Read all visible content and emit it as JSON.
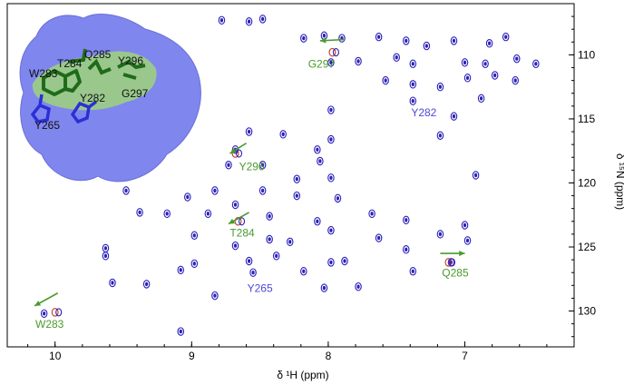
{
  "chart_data": {
    "type": "scatter",
    "title": "",
    "xlabel": "δ ¹H (ppm)",
    "ylabel": "δ ¹⁵N (ppm)",
    "xlim": [
      10.35,
      6.2
    ],
    "ylim": [
      106.0,
      132.8
    ],
    "x_ticks": [
      10,
      9,
      8,
      7
    ],
    "x_tick_labels": [
      "10",
      "9",
      "8",
      "7"
    ],
    "y_ticks": [
      110,
      115,
      120,
      125,
      130
    ],
    "y_tick_labels": [
      "110",
      "115",
      "120",
      "125",
      "130"
    ],
    "grid": false,
    "colors": {
      "peak": "#2a1fb8",
      "shifted_peak": "#c0392b",
      "perturbed_label": "#4a9b2c",
      "unperturbed_label": "#4b4ad6",
      "protein_surface": "#7f86ee",
      "binding_patch": "#9fd37a"
    },
    "peaks": [
      {
        "x": 8.78,
        "y": 107.3
      },
      {
        "x": 8.58,
        "y": 107.4
      },
      {
        "x": 8.48,
        "y": 107.2
      },
      {
        "x": 8.18,
        "y": 108.7
      },
      {
        "x": 8.03,
        "y": 108.5
      },
      {
        "x": 7.9,
        "y": 108.7
      },
      {
        "x": 7.63,
        "y": 108.6
      },
      {
        "x": 7.43,
        "y": 108.9
      },
      {
        "x": 7.28,
        "y": 109.3
      },
      {
        "x": 7.08,
        "y": 108.9
      },
      {
        "x": 6.82,
        "y": 109.1
      },
      {
        "x": 6.7,
        "y": 108.6
      },
      {
        "x": 7.98,
        "y": 110.6
      },
      {
        "x": 7.78,
        "y": 110.5
      },
      {
        "x": 7.5,
        "y": 110.2
      },
      {
        "x": 7.38,
        "y": 110.7
      },
      {
        "x": 7.0,
        "y": 110.6
      },
      {
        "x": 6.85,
        "y": 110.7
      },
      {
        "x": 6.62,
        "y": 110.3
      },
      {
        "x": 6.48,
        "y": 110.7
      },
      {
        "x": 7.58,
        "y": 112.0
      },
      {
        "x": 7.38,
        "y": 112.3
      },
      {
        "x": 7.18,
        "y": 112.5
      },
      {
        "x": 6.98,
        "y": 111.8
      },
      {
        "x": 6.78,
        "y": 111.6
      },
      {
        "x": 6.63,
        "y": 112.0
      },
      {
        "x": 7.38,
        "y": 113.6
      },
      {
        "x": 6.88,
        "y": 113.4
      },
      {
        "x": 7.98,
        "y": 114.3
      },
      {
        "x": 7.08,
        "y": 114.8
      },
      {
        "x": 7.18,
        "y": 116.3
      },
      {
        "x": 7.98,
        "y": 116.6
      },
      {
        "x": 8.58,
        "y": 116.0
      },
      {
        "x": 8.33,
        "y": 116.2
      },
      {
        "x": 8.08,
        "y": 117.4
      },
      {
        "x": 8.68,
        "y": 117.4
      },
      {
        "x": 8.73,
        "y": 118.6
      },
      {
        "x": 8.48,
        "y": 118.6
      },
      {
        "x": 8.06,
        "y": 118.3
      },
      {
        "x": 8.23,
        "y": 119.7
      },
      {
        "x": 6.92,
        "y": 119.4
      },
      {
        "x": 7.98,
        "y": 119.6
      },
      {
        "x": 9.48,
        "y": 120.6
      },
      {
        "x": 8.83,
        "y": 120.6
      },
      {
        "x": 8.48,
        "y": 120.6
      },
      {
        "x": 9.03,
        "y": 121.1
      },
      {
        "x": 8.23,
        "y": 121.0
      },
      {
        "x": 8.68,
        "y": 121.7
      },
      {
        "x": 7.93,
        "y": 121.2
      },
      {
        "x": 9.18,
        "y": 122.4
      },
      {
        "x": 8.88,
        "y": 122.4
      },
      {
        "x": 9.38,
        "y": 122.3
      },
      {
        "x": 8.43,
        "y": 122.6
      },
      {
        "x": 7.68,
        "y": 122.4
      },
      {
        "x": 8.08,
        "y": 123.0
      },
      {
        "x": 7.43,
        "y": 122.9
      },
      {
        "x": 7.0,
        "y": 123.3
      },
      {
        "x": 7.98,
        "y": 123.7
      },
      {
        "x": 8.43,
        "y": 124.4
      },
      {
        "x": 8.98,
        "y": 124.1
      },
      {
        "x": 8.28,
        "y": 124.6
      },
      {
        "x": 7.63,
        "y": 124.3
      },
      {
        "x": 7.18,
        "y": 124.0
      },
      {
        "x": 6.98,
        "y": 124.5
      },
      {
        "x": 9.63,
        "y": 125.1
      },
      {
        "x": 8.68,
        "y": 124.9
      },
      {
        "x": 9.63,
        "y": 125.7
      },
      {
        "x": 8.38,
        "y": 125.7
      },
      {
        "x": 7.43,
        "y": 125.2
      },
      {
        "x": 8.98,
        "y": 126.3
      },
      {
        "x": 8.58,
        "y": 126.1
      },
      {
        "x": 7.98,
        "y": 126.2
      },
      {
        "x": 7.88,
        "y": 126.1
      },
      {
        "x": 7.38,
        "y": 126.9
      },
      {
        "x": 9.08,
        "y": 126.8
      },
      {
        "x": 8.18,
        "y": 126.9
      },
      {
        "x": 7.1,
        "y": 126.2
      },
      {
        "x": 9.58,
        "y": 127.8
      },
      {
        "x": 9.33,
        "y": 127.9
      },
      {
        "x": 8.03,
        "y": 128.2
      },
      {
        "x": 7.78,
        "y": 128.1
      },
      {
        "x": 8.83,
        "y": 128.8
      },
      {
        "x": 10.08,
        "y": 130.2
      },
      {
        "x": 9.08,
        "y": 131.6
      },
      {
        "x": 8.55,
        "y": 127.0
      }
    ],
    "shifted_peaks": [
      {
        "x": 7.97,
        "y": 109.8
      },
      {
        "x": 8.68,
        "y": 117.7
      },
      {
        "x": 8.66,
        "y": 123.0
      },
      {
        "x": 7.12,
        "y": 126.2
      },
      {
        "x": 10.0,
        "y": 130.1
      }
    ],
    "shift_arrows": [
      {
        "x1": 7.88,
        "y1": 108.8,
        "x2": 8.06,
        "y2": 108.9,
        "label": "G297"
      },
      {
        "x1": 8.6,
        "y1": 116.9,
        "x2": 8.72,
        "y2": 117.7,
        "label": "Y296"
      },
      {
        "x1": 8.58,
        "y1": 122.3,
        "x2": 8.73,
        "y2": 123.2,
        "label": "T284"
      },
      {
        "x1": 7.18,
        "y1": 125.5,
        "x2": 7.0,
        "y2": 125.5,
        "label": "Q285"
      },
      {
        "x1": 9.98,
        "y1": 128.6,
        "x2": 10.15,
        "y2": 129.6,
        "label": "W283"
      }
    ],
    "residue_labels": [
      {
        "text": "G297",
        "x": 8.05,
        "y": 111.0,
        "perturbed": true
      },
      {
        "text": "Y282",
        "x": 7.3,
        "y": 114.8,
        "perturbed": false
      },
      {
        "text": "Y296",
        "x": 8.56,
        "y": 119.0,
        "perturbed": true
      },
      {
        "text": "T284",
        "x": 8.63,
        "y": 124.2,
        "perturbed": true
      },
      {
        "text": "Y265",
        "x": 8.5,
        "y": 128.5,
        "perturbed": false
      },
      {
        "text": "Q285",
        "x": 7.07,
        "y": 127.3,
        "perturbed": true
      },
      {
        "text": "W283",
        "x": 10.04,
        "y": 131.3,
        "perturbed": true
      }
    ]
  },
  "inset": {
    "labels": [
      {
        "text": "W283",
        "color": "#111"
      },
      {
        "text": "T284",
        "color": "#111"
      },
      {
        "text": "Q285",
        "color": "#111"
      },
      {
        "text": "Y296",
        "color": "#111"
      },
      {
        "text": "Y282",
        "color": "#111"
      },
      {
        "text": "G297",
        "color": "#111"
      },
      {
        "text": "Y265",
        "color": "#111"
      }
    ]
  }
}
